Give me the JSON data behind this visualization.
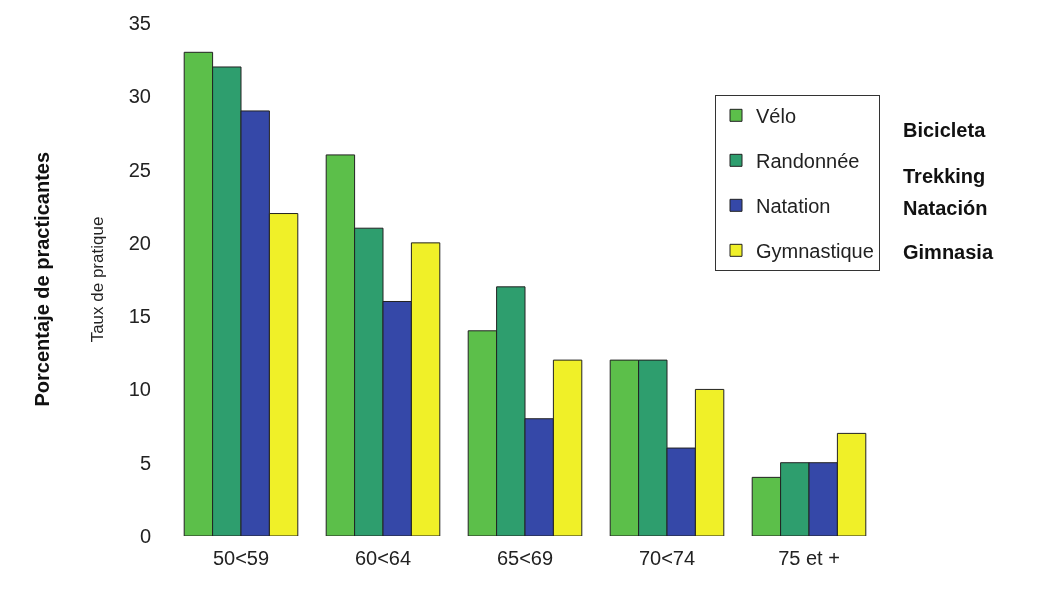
{
  "chart_data": {
    "type": "bar",
    "ylabel": "Taux de pratique",
    "categories": [
      "50<59",
      "60<64",
      "65<69",
      "70<74",
      "75 et +"
    ],
    "series": [
      {
        "name": "Vélo",
        "color": "#5cbf4a",
        "values": [
          33,
          26,
          14,
          12,
          4
        ]
      },
      {
        "name": "Randonnée",
        "color": "#2e9e6e",
        "values": [
          32,
          21,
          17,
          12,
          5
        ]
      },
      {
        "name": "Natation",
        "color": "#3548a8",
        "values": [
          29,
          16,
          8,
          6,
          5
        ]
      },
      {
        "name": "Gymnastique",
        "color": "#f0f028",
        "values": [
          22,
          20,
          12,
          10,
          7
        ]
      }
    ],
    "ylim": [
      0,
      35
    ],
    "yticks": [
      0,
      5,
      10,
      15,
      20,
      25,
      30,
      35
    ],
    "legend": "top right",
    "annotations": [
      "Porcentaje de practicantes",
      "Bicicleta",
      "Trekking",
      "Natación",
      "Gimnasia"
    ]
  }
}
